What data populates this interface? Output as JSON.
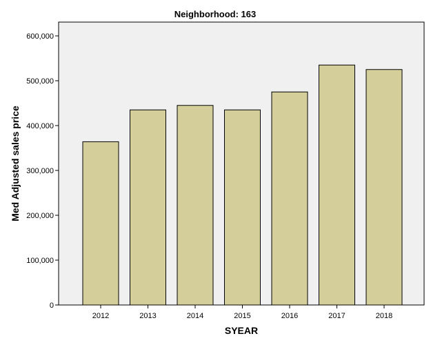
{
  "chart_data": {
    "type": "bar",
    "title": "Neighborhood: 163",
    "xlabel": "SYEAR",
    "ylabel": "Med Adjusted sales price",
    "categories": [
      "2012",
      "2013",
      "2014",
      "2015",
      "2016",
      "2017",
      "2018"
    ],
    "values": [
      364000,
      435000,
      445000,
      435000,
      475000,
      535000,
      525000
    ],
    "ylim": [
      0,
      600000
    ],
    "yticks": [
      0,
      100000,
      200000,
      300000,
      400000,
      500000,
      600000
    ],
    "ytick_labels": [
      "0",
      "100,000",
      "200,000",
      "300,000",
      "400,000",
      "500,000",
      "600,000"
    ],
    "grid": false,
    "legend": "none",
    "colors": {
      "bar_fill": "#d3ce9a",
      "bar_stroke": "#000000",
      "plot_background": "#f0f0f0"
    }
  }
}
